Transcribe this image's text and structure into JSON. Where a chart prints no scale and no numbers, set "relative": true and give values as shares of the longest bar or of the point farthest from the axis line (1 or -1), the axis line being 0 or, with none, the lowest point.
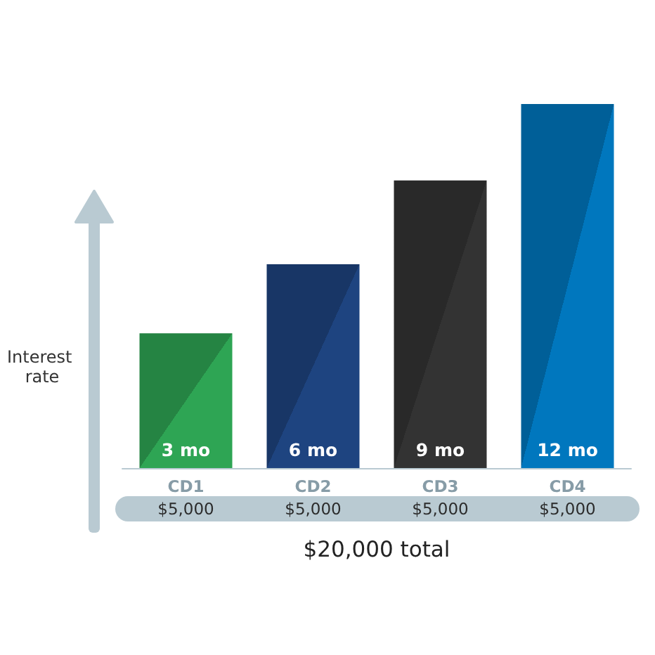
{
  "chart_data": {
    "type": "bar",
    "relative": true,
    "ylabel": "Interest rate",
    "categories": [
      "CD1",
      "CD2",
      "CD3",
      "CD4"
    ],
    "values": [
      0.37,
      0.56,
      0.79,
      1
    ],
    "colors": [
      "#2ea554",
      "#1e4480",
      "#333333",
      "#0077be"
    ],
    "annotations": [
      {
        "text": "3 mo",
        "x": "CD1",
        "y": 0
      },
      {
        "text": "6 mo",
        "x": "CD2",
        "y": 0
      },
      {
        "text": "9 mo",
        "x": "CD3",
        "y": 0
      },
      {
        "text": "12 mo",
        "x": "CD4",
        "y": 0
      },
      "$5,000",
      "$5,000",
      "$5,000",
      "$5,000",
      "$20,000 total"
    ]
  }
}
